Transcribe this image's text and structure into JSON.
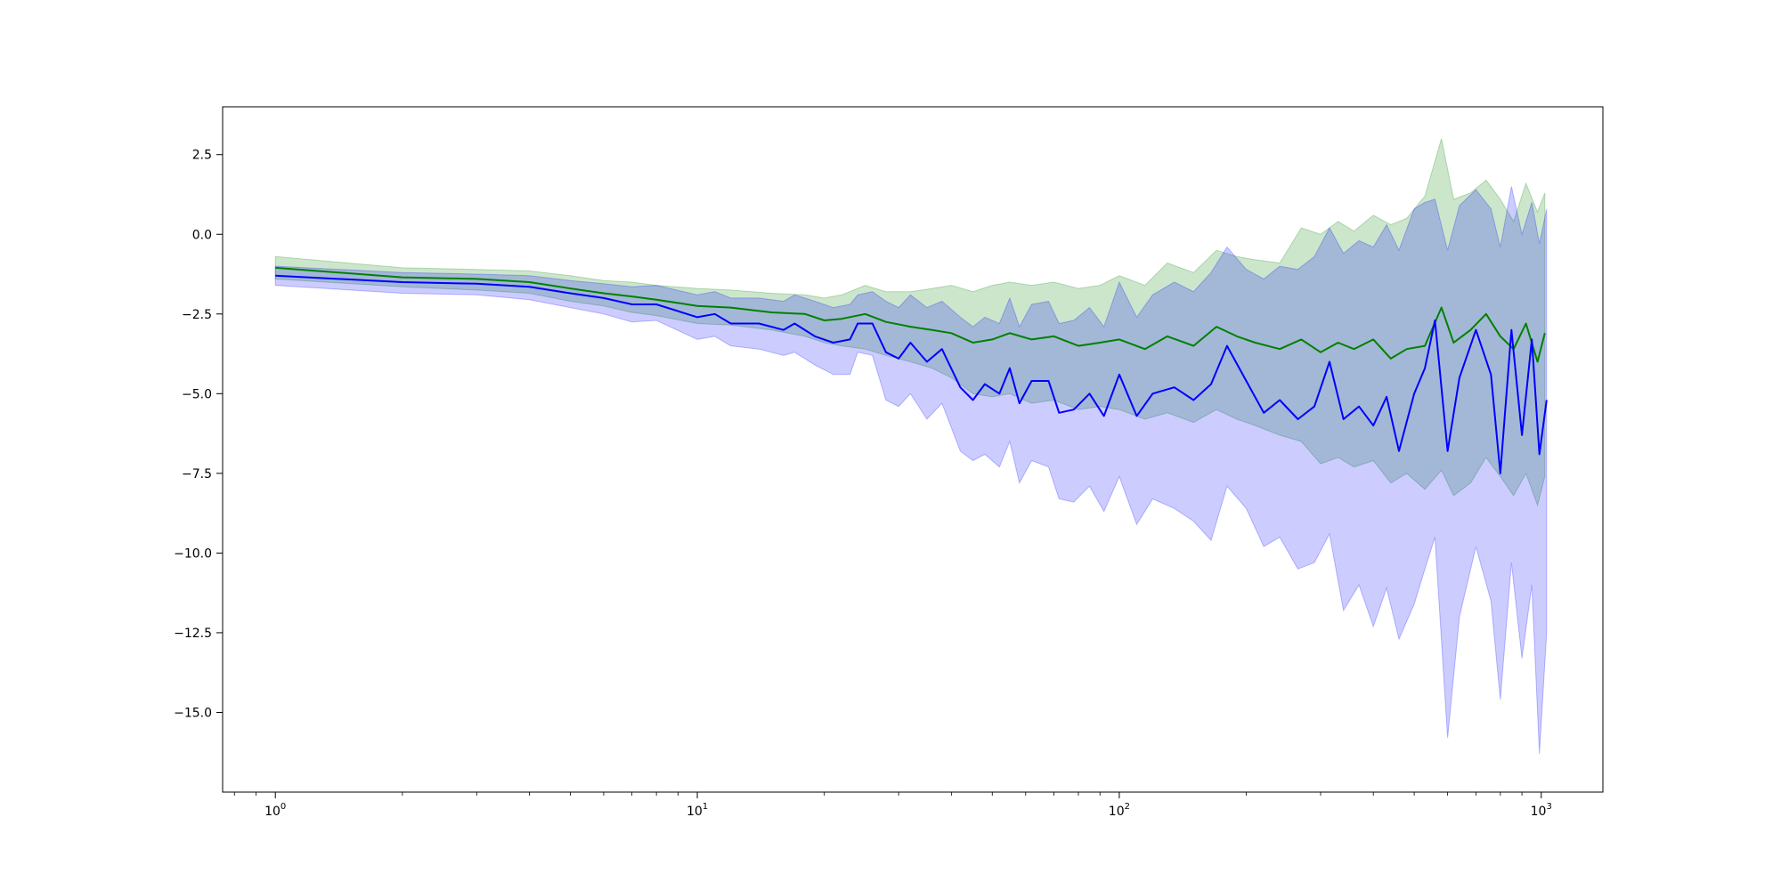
{
  "chart_data": {
    "type": "line",
    "title": "",
    "xlabel": "",
    "ylabel": "",
    "xscale": "log",
    "xlim": [
      0.75,
      1400
    ],
    "ylim": [
      -17.5,
      4.0
    ],
    "grid": false,
    "legend": "none",
    "x_ticks": [
      {
        "value": 1,
        "base": "10",
        "exp": "0"
      },
      {
        "value": 10,
        "base": "10",
        "exp": "1"
      },
      {
        "value": 100,
        "base": "10",
        "exp": "2"
      },
      {
        "value": 1000,
        "base": "10",
        "exp": "3"
      }
    ],
    "y_ticks": [
      {
        "value": 2.5,
        "label": "2.5"
      },
      {
        "value": 0.0,
        "label": "0.0"
      },
      {
        "value": -2.5,
        "label": "−2.5"
      },
      {
        "value": -5.0,
        "label": "−5.0"
      },
      {
        "value": -7.5,
        "label": "−7.5"
      },
      {
        "value": -10.0,
        "label": "−10.0"
      },
      {
        "value": -12.5,
        "label": "−12.5"
      },
      {
        "value": -15.0,
        "label": "−15.0"
      }
    ],
    "series": [
      {
        "color": "#008000",
        "band_color": "#008000",
        "band_opacity": 0.2,
        "points": [
          [
            1,
            -1.05,
            -0.7,
            -1.4
          ],
          [
            2,
            -1.35,
            -1.05,
            -1.65
          ],
          [
            3,
            -1.4,
            -1.1,
            -1.75
          ],
          [
            4,
            -1.5,
            -1.15,
            -1.85
          ],
          [
            5,
            -1.7,
            -1.3,
            -2.1
          ],
          [
            6,
            -1.85,
            -1.45,
            -2.25
          ],
          [
            7,
            -1.95,
            -1.5,
            -2.45
          ],
          [
            8,
            -2.05,
            -1.6,
            -2.55
          ],
          [
            10,
            -2.25,
            -1.7,
            -2.8
          ],
          [
            12,
            -2.3,
            -1.75,
            -2.85
          ],
          [
            15,
            -2.45,
            -1.85,
            -3.0
          ],
          [
            18,
            -2.5,
            -1.9,
            -3.2
          ],
          [
            20,
            -2.7,
            -2.0,
            -3.4
          ],
          [
            22,
            -2.65,
            -1.9,
            -3.5
          ],
          [
            25,
            -2.5,
            -1.6,
            -3.6
          ],
          [
            28,
            -2.75,
            -1.8,
            -3.8
          ],
          [
            32,
            -2.9,
            -1.8,
            -4.0
          ],
          [
            36,
            -3.0,
            -1.7,
            -4.2
          ],
          [
            40,
            -3.1,
            -1.6,
            -4.5
          ],
          [
            45,
            -3.4,
            -1.8,
            -5.0
          ],
          [
            50,
            -3.3,
            -1.6,
            -5.1
          ],
          [
            55,
            -3.1,
            -1.5,
            -5.0
          ],
          [
            62,
            -3.3,
            -1.6,
            -5.3
          ],
          [
            70,
            -3.2,
            -1.5,
            -5.2
          ],
          [
            80,
            -3.5,
            -1.7,
            -5.5
          ],
          [
            90,
            -3.4,
            -1.6,
            -5.4
          ],
          [
            100,
            -3.3,
            -1.3,
            -5.5
          ],
          [
            115,
            -3.6,
            -1.6,
            -5.8
          ],
          [
            130,
            -3.2,
            -0.9,
            -5.6
          ],
          [
            150,
            -3.5,
            -1.2,
            -5.9
          ],
          [
            170,
            -2.9,
            -0.5,
            -5.5
          ],
          [
            190,
            -3.2,
            -0.7,
            -5.8
          ],
          [
            210,
            -3.4,
            -0.8,
            -6.0
          ],
          [
            240,
            -3.6,
            -0.9,
            -6.3
          ],
          [
            270,
            -3.3,
            0.2,
            -6.5
          ],
          [
            300,
            -3.7,
            0.0,
            -7.2
          ],
          [
            330,
            -3.4,
            0.4,
            -7.0
          ],
          [
            360,
            -3.6,
            0.1,
            -7.3
          ],
          [
            400,
            -3.3,
            0.6,
            -7.1
          ],
          [
            440,
            -3.9,
            0.3,
            -7.8
          ],
          [
            480,
            -3.6,
            0.5,
            -7.5
          ],
          [
            530,
            -3.5,
            1.2,
            -8.0
          ],
          [
            580,
            -2.3,
            3.0,
            -7.4
          ],
          [
            620,
            -3.4,
            1.1,
            -8.2
          ],
          [
            680,
            -3.0,
            1.3,
            -7.8
          ],
          [
            740,
            -2.5,
            1.7,
            -7.0
          ],
          [
            800,
            -3.2,
            1.1,
            -7.6
          ],
          [
            860,
            -3.6,
            0.4,
            -8.2
          ],
          [
            920,
            -2.8,
            1.6,
            -7.5
          ],
          [
            980,
            -4.0,
            0.7,
            -8.5
          ],
          [
            1020,
            -3.1,
            1.3,
            -7.6
          ]
        ]
      },
      {
        "color": "#0000ff",
        "band_color": "#0000ff",
        "band_opacity": 0.2,
        "points": [
          [
            1,
            -1.3,
            -1.0,
            -1.6
          ],
          [
            2,
            -1.5,
            -1.2,
            -1.85
          ],
          [
            3,
            -1.55,
            -1.25,
            -1.9
          ],
          [
            4,
            -1.65,
            -1.3,
            -2.05
          ],
          [
            5,
            -1.85,
            -1.45,
            -2.3
          ],
          [
            6,
            -2.0,
            -1.55,
            -2.5
          ],
          [
            7,
            -2.2,
            -1.65,
            -2.75
          ],
          [
            8,
            -2.2,
            -1.6,
            -2.7
          ],
          [
            10,
            -2.6,
            -1.9,
            -3.3
          ],
          [
            11,
            -2.5,
            -1.8,
            -3.2
          ],
          [
            12,
            -2.8,
            -2.0,
            -3.5
          ],
          [
            14,
            -2.8,
            -2.0,
            -3.6
          ],
          [
            16,
            -3.0,
            -2.1,
            -3.8
          ],
          [
            17,
            -2.8,
            -1.9,
            -3.7
          ],
          [
            19,
            -3.2,
            -2.1,
            -4.1
          ],
          [
            21,
            -3.4,
            -2.3,
            -4.4
          ],
          [
            23,
            -3.3,
            -2.2,
            -4.4
          ],
          [
            24,
            -2.8,
            -1.9,
            -3.7
          ],
          [
            26,
            -2.8,
            -1.8,
            -3.8
          ],
          [
            28,
            -3.7,
            -2.1,
            -5.2
          ],
          [
            30,
            -3.9,
            -2.3,
            -5.4
          ],
          [
            32,
            -3.4,
            -1.9,
            -5.0
          ],
          [
            35,
            -4.0,
            -2.3,
            -5.8
          ],
          [
            38,
            -3.6,
            -2.1,
            -5.3
          ],
          [
            42,
            -4.8,
            -2.6,
            -6.8
          ],
          [
            45,
            -5.2,
            -2.9,
            -7.1
          ],
          [
            48,
            -4.7,
            -2.6,
            -6.9
          ],
          [
            52,
            -5.0,
            -2.8,
            -7.3
          ],
          [
            55,
            -4.2,
            -2.0,
            -6.5
          ],
          [
            58,
            -5.3,
            -2.9,
            -7.8
          ],
          [
            62,
            -4.6,
            -2.2,
            -7.1
          ],
          [
            68,
            -4.6,
            -2.1,
            -7.3
          ],
          [
            72,
            -5.6,
            -2.8,
            -8.3
          ],
          [
            78,
            -5.5,
            -2.7,
            -8.4
          ],
          [
            85,
            -5.0,
            -2.3,
            -7.9
          ],
          [
            92,
            -5.7,
            -2.9,
            -8.7
          ],
          [
            100,
            -4.4,
            -1.5,
            -7.6
          ],
          [
            110,
            -5.7,
            -2.6,
            -9.1
          ],
          [
            120,
            -5.0,
            -1.9,
            -8.3
          ],
          [
            135,
            -4.8,
            -1.5,
            -8.6
          ],
          [
            150,
            -5.2,
            -1.8,
            -9.0
          ],
          [
            165,
            -4.7,
            -1.2,
            -9.6
          ],
          [
            180,
            -3.5,
            -0.4,
            -7.9
          ],
          [
            200,
            -4.6,
            -1.1,
            -8.6
          ],
          [
            220,
            -5.6,
            -1.4,
            -9.8
          ],
          [
            240,
            -5.2,
            -1.0,
            -9.5
          ],
          [
            265,
            -5.8,
            -1.1,
            -10.5
          ],
          [
            290,
            -5.4,
            -0.7,
            -10.3
          ],
          [
            315,
            -4.0,
            0.2,
            -9.4
          ],
          [
            340,
            -5.8,
            -0.6,
            -11.8
          ],
          [
            370,
            -5.4,
            -0.2,
            -11.0
          ],
          [
            400,
            -6.0,
            -0.4,
            -12.3
          ],
          [
            430,
            -5.1,
            0.3,
            -11.1
          ],
          [
            460,
            -6.8,
            -0.5,
            -12.7
          ],
          [
            500,
            -5.0,
            0.8,
            -11.6
          ],
          [
            530,
            -4.2,
            1.0,
            -10.5
          ],
          [
            560,
            -2.7,
            1.1,
            -9.5
          ],
          [
            600,
            -6.8,
            -0.5,
            -15.8
          ],
          [
            640,
            -4.5,
            0.9,
            -12.0
          ],
          [
            700,
            -3.0,
            1.4,
            -9.8
          ],
          [
            760,
            -4.4,
            0.8,
            -11.5
          ],
          [
            800,
            -7.5,
            -0.4,
            -14.6
          ],
          [
            850,
            -3.0,
            1.5,
            -10.3
          ],
          [
            900,
            -6.3,
            0.0,
            -13.3
          ],
          [
            950,
            -3.3,
            1.0,
            -11.0
          ],
          [
            990,
            -6.9,
            -0.3,
            -16.3
          ],
          [
            1030,
            -5.2,
            0.8,
            -12.5
          ]
        ]
      }
    ]
  }
}
